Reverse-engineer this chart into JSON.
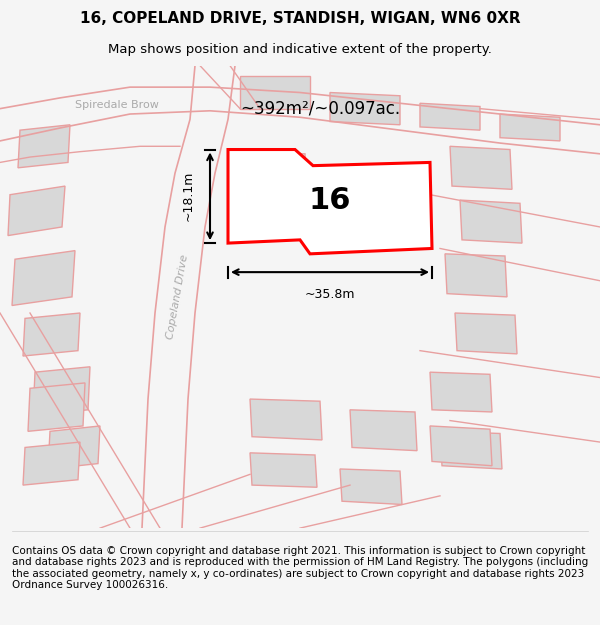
{
  "title_line1": "16, COPELAND DRIVE, STANDISH, WIGAN, WN6 0XR",
  "title_line2": "Map shows position and indicative extent of the property.",
  "footer": "Contains OS data © Crown copyright and database right 2021. This information is subject to Crown copyright and database rights 2023 and is reproduced with the permission of HM Land Registry. The polygons (including the associated geometry, namely x, y co-ordinates) are subject to Crown copyright and database rights 2023 Ordnance Survey 100026316.",
  "area_label": "~392m²/~0.097ac.",
  "number_label": "16",
  "dim_h": "~18.1m",
  "dim_w": "~35.8m",
  "road_label": "Copeland Drive",
  "street_label": "Spiredale Brow",
  "bg_color": "#f5f5f5",
  "map_bg": "#ffffff",
  "outline_color": "#e8a0a0",
  "property_color": "#ff0000",
  "building_fill": "#d8d8d8",
  "building_outline": "#e8a0a0",
  "title_fontsize": 11,
  "subtitle_fontsize": 9.5,
  "footer_fontsize": 7.5
}
